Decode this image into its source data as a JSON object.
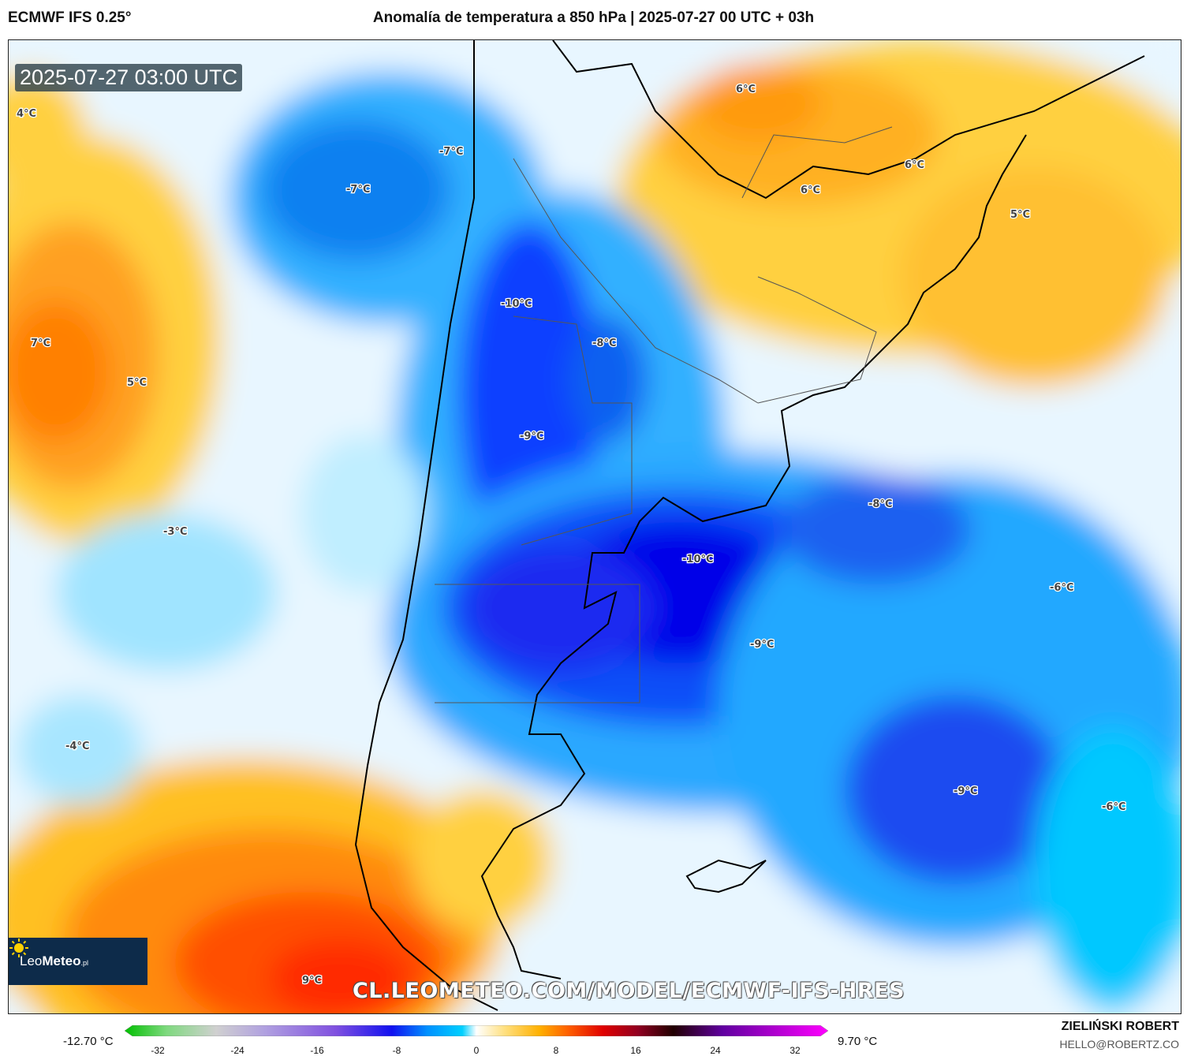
{
  "header": {
    "model": "ECMWF IFS 0.25°",
    "title": "Anomalía de temperatura a 850 hPa | 2025-07-27 00 UTC + 03h"
  },
  "map": {
    "timestamp": "2025-07-27 03:00 UTC",
    "labels": [
      "4°C",
      "7°C",
      "5°C",
      "-7°C",
      "-7°C",
      "-10°C",
      "-8°C",
      "-9°C",
      "-3°C",
      "-4°C",
      "9°C",
      "6°C",
      "6°C",
      "6°C",
      "5°C",
      "-8°C",
      "-10°C",
      "-6°C",
      "-9°C",
      "-9°C",
      "-6°C"
    ],
    "watermark": "CL.LEOMETEO.COM/MODEL/ECMWF-IFS-HRES"
  },
  "logo": {
    "text_light": "Leo",
    "text_bold": "Meteo",
    "suffix": ".pl",
    "icon": "sun-icon"
  },
  "legend": {
    "min_label": "-12.70 °C",
    "max_label": "9.70 °C",
    "ticks": [
      "-32",
      "-24",
      "-16",
      "-8",
      "0",
      "8",
      "16",
      "24",
      "32"
    ],
    "range": [
      -32,
      32
    ],
    "colors": [
      "#00c000",
      "#7fd97f",
      "#d0d0d0",
      "#b0a0e0",
      "#8050e0",
      "#1010f0",
      "#0090ff",
      "#00d0ff",
      "#ffffff",
      "#ffe080",
      "#ffb000",
      "#ff6000",
      "#e00000",
      "#900020",
      "#200000",
      "#6000a0",
      "#ff00ff"
    ]
  },
  "footer": {
    "author": "ZIELIŃSKI ROBERT",
    "email": "HELLO@ROBERTZ.CO"
  }
}
